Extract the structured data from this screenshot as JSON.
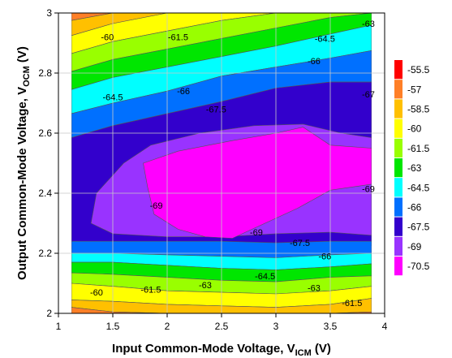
{
  "chart_data": {
    "type": "contour",
    "xlabel_main": "Input Common-Mode Voltage, V",
    "xlabel_sub": "ICM",
    "xlabel_tail": " (V)",
    "ylabel_main": "Output Common-Mode Voltage, V",
    "ylabel_sub": "OCM",
    "ylabel_tail": " (V)",
    "xlim": [
      1,
      4
    ],
    "ylim": [
      2,
      3
    ],
    "data_xlim": [
      1.12,
      3.88
    ],
    "x_ticks": [
      "1",
      "1.5",
      "2",
      "2.5",
      "3",
      "3.5",
      "4"
    ],
    "y_ticks": [
      "2",
      "2.2",
      "2.4",
      "2.6",
      "2.8",
      "3"
    ],
    "grid": true,
    "legend_position": "right",
    "levels": [
      {
        "label": "-55.5",
        "color": "#ff0000"
      },
      {
        "label": "-57",
        "color": "#ff7f27"
      },
      {
        "label": "-58.5",
        "color": "#ffc000"
      },
      {
        "label": "-60",
        "color": "#ffff00"
      },
      {
        "label": "-61.5",
        "color": "#99ff00"
      },
      {
        "label": "-63",
        "color": "#00e600"
      },
      {
        "label": "-64.5",
        "color": "#00ffff"
      },
      {
        "label": "-66",
        "color": "#0070ff"
      },
      {
        "label": "-67.5",
        "color": "#3300cc"
      },
      {
        "label": "-69",
        "color": "#9933ff"
      },
      {
        "label": "-70.5",
        "color": "#ff00ff"
      }
    ],
    "x": [
      1.12,
      1.5,
      2.0,
      2.5,
      3.0,
      3.5,
      3.88
    ],
    "contours": [
      {
        "level": "-57",
        "upper": [
          3.0,
          3.0,
          3.0,
          3.0,
          3.0,
          3.0,
          3.0
        ],
        "lower": [
          2.975,
          3.0,
          3.0,
          3.0,
          3.0,
          3.0,
          3.0
        ]
      },
      {
        "level": "-58.5",
        "upper": [
          2.975,
          3.0,
          3.0,
          3.0,
          3.0,
          3.0,
          3.0
        ],
        "lower": [
          2.925,
          2.965,
          3.0,
          3.0,
          3.0,
          3.0,
          3.0
        ]
      },
      {
        "level": "-60",
        "upper": [
          2.925,
          2.965,
          3.0,
          3.0,
          3.0,
          3.0,
          3.0
        ],
        "lower": [
          2.865,
          2.905,
          2.94,
          2.975,
          3.0,
          3.0,
          3.0
        ]
      },
      {
        "level": "-61.5",
        "upper": [
          2.865,
          2.905,
          2.94,
          2.975,
          3.0,
          3.0,
          3.0
        ],
        "lower": [
          2.805,
          2.845,
          2.88,
          2.915,
          2.95,
          2.985,
          3.0
        ]
      },
      {
        "level": "-63",
        "upper": [
          2.805,
          2.845,
          2.88,
          2.915,
          2.95,
          2.985,
          3.0
        ],
        "lower": [
          2.745,
          2.785,
          2.82,
          2.855,
          2.89,
          2.93,
          2.96
        ]
      },
      {
        "level": "-64.5",
        "upper": [
          2.745,
          2.785,
          2.82,
          2.855,
          2.89,
          2.93,
          2.96
        ],
        "lower": [
          2.665,
          2.7,
          2.74,
          2.79,
          2.82,
          2.85,
          2.875
        ]
      },
      {
        "level": "-66",
        "upper": [
          2.665,
          2.7,
          2.74,
          2.79,
          2.82,
          2.85,
          2.875
        ],
        "lower": [
          2.585,
          2.625,
          2.665,
          2.705,
          2.75,
          2.77,
          2.77
        ]
      },
      {
        "level": "-67.5",
        "upper": [
          2.585,
          2.625,
          2.665,
          2.705,
          2.75,
          2.77,
          2.77
        ],
        "lower": [
          2.215,
          2.215,
          2.215,
          2.22,
          2.215,
          2.225,
          2.225
        ]
      },
      {
        "level": "-66",
        "upper": [
          2.24,
          2.24,
          2.24,
          2.24,
          2.235,
          2.24,
          2.24
        ],
        "lower": [
          2.2,
          2.2,
          2.195,
          2.19,
          2.185,
          2.195,
          2.2
        ]
      },
      {
        "level": "-64.5",
        "upper": [
          2.2,
          2.2,
          2.195,
          2.19,
          2.185,
          2.195,
          2.2
        ],
        "lower": [
          2.17,
          2.17,
          2.16,
          2.15,
          2.145,
          2.155,
          2.165
        ]
      },
      {
        "level": "-63",
        "upper": [
          2.17,
          2.17,
          2.16,
          2.15,
          2.145,
          2.155,
          2.165
        ],
        "lower": [
          2.135,
          2.13,
          2.12,
          2.11,
          2.105,
          2.12,
          2.125
        ]
      },
      {
        "level": "-61.5",
        "upper": [
          2.135,
          2.13,
          2.12,
          2.11,
          2.105,
          2.12,
          2.125
        ],
        "lower": [
          2.1,
          2.09,
          2.075,
          2.07,
          2.065,
          2.075,
          2.09
        ]
      },
      {
        "level": "-60",
        "upper": [
          2.1,
          2.09,
          2.075,
          2.07,
          2.065,
          2.075,
          2.09
        ],
        "lower": [
          2.045,
          2.04,
          2.03,
          2.025,
          2.02,
          2.03,
          2.05
        ]
      },
      {
        "level": "-58.5",
        "upper": [
          2.045,
          2.04,
          2.03,
          2.025,
          2.02,
          2.03,
          2.05
        ],
        "lower": [
          2.02,
          2.005,
          2.0,
          2.0,
          2.0,
          2.0,
          2.005
        ]
      },
      {
        "level": "-57",
        "upper": [
          2.02,
          2.005,
          2.0,
          2.0,
          2.0,
          2.0,
          2.005
        ],
        "lower": [
          2.0,
          2.0,
          2.0,
          2.0,
          2.0,
          2.0,
          2.0
        ]
      }
    ],
    "bands_above_fill": [
      {
        "level": "-69",
        "points": [
          [
            1.6,
            2.5
          ],
          [
            1.85,
            2.56
          ],
          [
            2.3,
            2.6
          ],
          [
            2.8,
            2.625
          ],
          [
            3.25,
            2.63
          ],
          [
            3.6,
            2.6
          ],
          [
            3.88,
            2.585
          ],
          [
            3.88,
            2.26
          ],
          [
            3.5,
            2.27
          ],
          [
            3.0,
            2.265
          ],
          [
            2.5,
            2.255
          ],
          [
            2.0,
            2.255
          ],
          [
            1.5,
            2.265
          ],
          [
            1.3,
            2.3
          ],
          [
            1.35,
            2.4
          ]
        ]
      },
      {
        "level": "-70.5",
        "points": [
          [
            1.78,
            2.5
          ],
          [
            2.1,
            2.54
          ],
          [
            2.6,
            2.575
          ],
          [
            3.0,
            2.6
          ],
          [
            3.25,
            2.62
          ],
          [
            3.5,
            2.56
          ],
          [
            3.88,
            2.55
          ],
          [
            3.88,
            2.43
          ],
          [
            3.5,
            2.41
          ],
          [
            3.2,
            2.35
          ],
          [
            2.9,
            2.3
          ],
          [
            2.6,
            2.25
          ],
          [
            2.35,
            2.255
          ],
          [
            2.1,
            2.28
          ],
          [
            1.88,
            2.33
          ],
          [
            1.82,
            2.42
          ]
        ]
      }
    ],
    "contour_labels": [
      {
        "text": "-60",
        "x": 1.45,
        "y": 2.92
      },
      {
        "text": "-61.5",
        "x": 2.1,
        "y": 2.92
      },
      {
        "text": "-64.5",
        "x": 3.45,
        "y": 2.915
      },
      {
        "text": "-63",
        "x": 3.85,
        "y": 2.965
      },
      {
        "text": "-66",
        "x": 3.35,
        "y": 2.84
      },
      {
        "text": "-64.5",
        "x": 1.5,
        "y": 2.72
      },
      {
        "text": "-66",
        "x": 2.15,
        "y": 2.74
      },
      {
        "text": "-67.5",
        "x": 2.45,
        "y": 2.68
      },
      {
        "text": "-67",
        "x": 3.85,
        "y": 2.73
      },
      {
        "text": "-69",
        "x": 3.85,
        "y": 2.415
      },
      {
        "text": "-69",
        "x": 1.9,
        "y": 2.36
      },
      {
        "text": "-69",
        "x": 2.82,
        "y": 2.27
      },
      {
        "text": "-67.5",
        "x": 3.22,
        "y": 2.235
      },
      {
        "text": "-66",
        "x": 3.45,
        "y": 2.19
      },
      {
        "text": "-64.5",
        "x": 2.9,
        "y": 2.125
      },
      {
        "text": "-63",
        "x": 2.35,
        "y": 2.095
      },
      {
        "text": "-63",
        "x": 3.35,
        "y": 2.085
      },
      {
        "text": "-60",
        "x": 1.35,
        "y": 2.07
      },
      {
        "text": "-61.5",
        "x": 1.85,
        "y": 2.08
      },
      {
        "text": "-61.5",
        "x": 3.7,
        "y": 2.035
      }
    ]
  }
}
